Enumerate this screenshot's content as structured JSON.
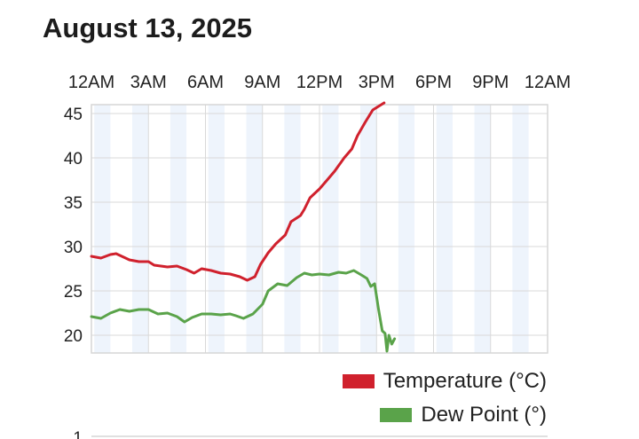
{
  "page": {
    "title": "August 13, 2025"
  },
  "chart_data": {
    "type": "line",
    "x_axis": {
      "unit": "hours since midnight",
      "range": [
        0,
        24
      ],
      "ticks": [
        0,
        3,
        6,
        9,
        12,
        15,
        18,
        21,
        24
      ],
      "tick_labels": [
        "12AM",
        "3AM",
        "6AM",
        "9AM",
        "12PM",
        "3PM",
        "6PM",
        "9PM",
        "12AM"
      ],
      "label_position": "top"
    },
    "y_axis": {
      "range": [
        18,
        46
      ],
      "ticks": [
        20,
        25,
        30,
        35,
        40,
        45
      ],
      "tick_labels": [
        "20",
        "25",
        "30",
        "35",
        "40",
        "45"
      ]
    },
    "grid": true,
    "legend_position": "bottom-right",
    "series": [
      {
        "name": "Temperature (°C)",
        "color": "#d0212d",
        "points": [
          [
            0,
            28.9
          ],
          [
            0.5,
            28.7
          ],
          [
            1,
            29.1
          ],
          [
            1.3,
            29.2
          ],
          [
            1.7,
            28.8
          ],
          [
            2,
            28.5
          ],
          [
            2.5,
            28.3
          ],
          [
            3,
            28.3
          ],
          [
            3.3,
            27.9
          ],
          [
            4,
            27.7
          ],
          [
            4.5,
            27.8
          ],
          [
            5,
            27.4
          ],
          [
            5.4,
            27.0
          ],
          [
            5.8,
            27.5
          ],
          [
            6.3,
            27.3
          ],
          [
            6.8,
            27.0
          ],
          [
            7.3,
            26.9
          ],
          [
            7.8,
            26.6
          ],
          [
            8.2,
            26.2
          ],
          [
            8.6,
            26.6
          ],
          [
            8.9,
            28.0
          ],
          [
            9.3,
            29.3
          ],
          [
            9.7,
            30.3
          ],
          [
            10.2,
            31.3
          ],
          [
            10.5,
            32.8
          ],
          [
            11,
            33.5
          ],
          [
            11.2,
            34.2
          ],
          [
            11.5,
            35.5
          ],
          [
            12,
            36.5
          ],
          [
            12.4,
            37.5
          ],
          [
            12.8,
            38.5
          ],
          [
            13.3,
            40.0
          ],
          [
            13.7,
            41.0
          ],
          [
            14,
            42.5
          ],
          [
            14.4,
            44.0
          ],
          [
            14.8,
            45.4
          ],
          [
            15.1,
            45.8
          ],
          [
            15.4,
            46.2
          ]
        ]
      },
      {
        "name": "Dew Point (°)",
        "color": "#5aa34a",
        "points": [
          [
            0,
            22.1
          ],
          [
            0.5,
            21.9
          ],
          [
            1,
            22.5
          ],
          [
            1.5,
            22.9
          ],
          [
            2,
            22.7
          ],
          [
            2.5,
            22.9
          ],
          [
            3,
            22.9
          ],
          [
            3.5,
            22.4
          ],
          [
            4,
            22.5
          ],
          [
            4.5,
            22.1
          ],
          [
            4.9,
            21.5
          ],
          [
            5.3,
            22.0
          ],
          [
            5.8,
            22.4
          ],
          [
            6.3,
            22.4
          ],
          [
            6.8,
            22.3
          ],
          [
            7.3,
            22.4
          ],
          [
            7.6,
            22.2
          ],
          [
            8,
            21.9
          ],
          [
            8.5,
            22.4
          ],
          [
            9,
            23.5
          ],
          [
            9.3,
            25.0
          ],
          [
            9.8,
            25.8
          ],
          [
            10.3,
            25.6
          ],
          [
            10.8,
            26.5
          ],
          [
            11.2,
            27.0
          ],
          [
            11.6,
            26.8
          ],
          [
            12,
            26.9
          ],
          [
            12.5,
            26.8
          ],
          [
            13,
            27.1
          ],
          [
            13.4,
            27.0
          ],
          [
            13.8,
            27.3
          ],
          [
            14.2,
            26.8
          ],
          [
            14.5,
            26.4
          ],
          [
            14.7,
            25.5
          ],
          [
            14.9,
            25.8
          ],
          [
            15.1,
            23.0
          ],
          [
            15.3,
            20.5
          ],
          [
            15.45,
            20.2
          ],
          [
            15.55,
            18.2
          ],
          [
            15.65,
            20.0
          ],
          [
            15.8,
            19.0
          ],
          [
            15.95,
            19.6
          ]
        ]
      }
    ]
  },
  "next_chart": {
    "first_tick": "1"
  }
}
